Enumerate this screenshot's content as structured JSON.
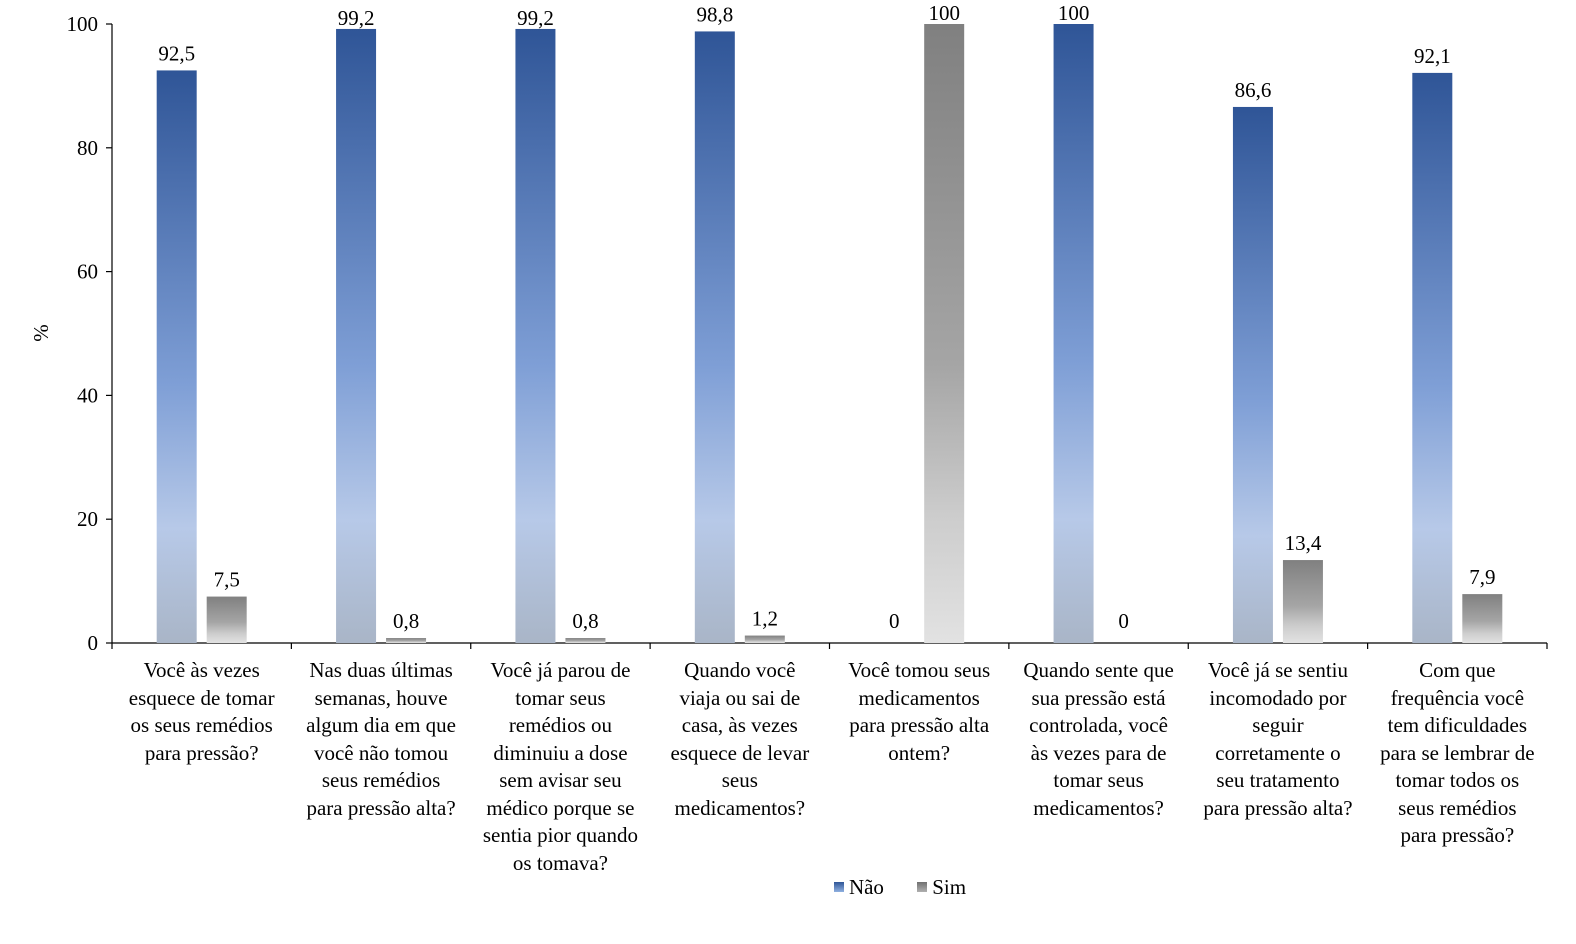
{
  "colors": {
    "nao": "#2f5597",
    "sim": "#7f7f7f"
  },
  "chart_data": {
    "type": "bar",
    "ylabel": "%",
    "ylim": [
      0,
      100
    ],
    "yticks": [
      "0",
      "20",
      "40",
      "60",
      "80",
      "100"
    ],
    "categories": [
      "Você às vezes esquece de tomar os seus remédios para pressão?",
      "Nas duas últimas semanas, houve algum dia em que você não tomou seus remédios para pressão alta?",
      "Você já parou de tomar seus remédios ou diminuiu a dose sem avisar seu médico porque se sentia pior quando os tomava?",
      "Quando você viaja ou sai de casa, às vezes esquece de levar seus medicamentos?",
      "Você tomou seus medicamentos para pressão alta ontem?",
      "Quando sente que sua pressão está controlada, você às vezes para de tomar seus medicamentos?",
      "Você já se sentiu incomodado por seguir corretamente o seu tratamento para pressão alta?",
      "Com que frequência você tem dificuldades para se lembrar de tomar todos os seus remédios para pressão?"
    ],
    "category_lines": [
      [
        "Você às vezes",
        "esquece de tomar",
        "os seus remédios",
        "para pressão?"
      ],
      [
        "Nas duas últimas",
        "semanas, houve",
        "algum dia em que",
        "você não tomou",
        "seus remédios",
        "para pressão alta?"
      ],
      [
        "Você já parou de",
        "tomar seus",
        "remédios ou",
        "diminuiu a dose",
        "sem avisar seu",
        "médico porque se",
        "sentia pior quando",
        "os tomava?"
      ],
      [
        "Quando você",
        "viaja ou sai de",
        "casa, às vezes",
        "esquece de levar",
        "seus",
        "medicamentos?"
      ],
      [
        "Você tomou seus",
        "medicamentos",
        "para pressão alta",
        "ontem?"
      ],
      [
        "Quando sente que",
        "sua pressão está",
        "controlada, você",
        "às vezes para de",
        "tomar seus",
        "medicamentos?"
      ],
      [
        "Você já se sentiu",
        "incomodado por",
        "seguir",
        "corretamente o",
        "seu tratamento",
        "para pressão alta?"
      ],
      [
        "Com que",
        "frequência você",
        "tem dificuldades",
        "para se lembrar de",
        "tomar todos os",
        "seus remédios",
        "para pressão?"
      ]
    ],
    "series": [
      {
        "name": "Não",
        "values": [
          92.5,
          99.2,
          99.2,
          98.8,
          0,
          100,
          86.6,
          92.1
        ],
        "labels": [
          "92,5",
          "99,2",
          "99,2",
          "98,8",
          "0",
          "100",
          "86,6",
          "92,1"
        ]
      },
      {
        "name": "Sim",
        "values": [
          7.5,
          0.8,
          0.8,
          1.2,
          100,
          0,
          13.4,
          7.9
        ],
        "labels": [
          "7,5",
          "0,8",
          "0,8",
          "1,2",
          "100",
          "0",
          "13,4",
          "7,9"
        ]
      }
    ],
    "legend": "bottom"
  }
}
